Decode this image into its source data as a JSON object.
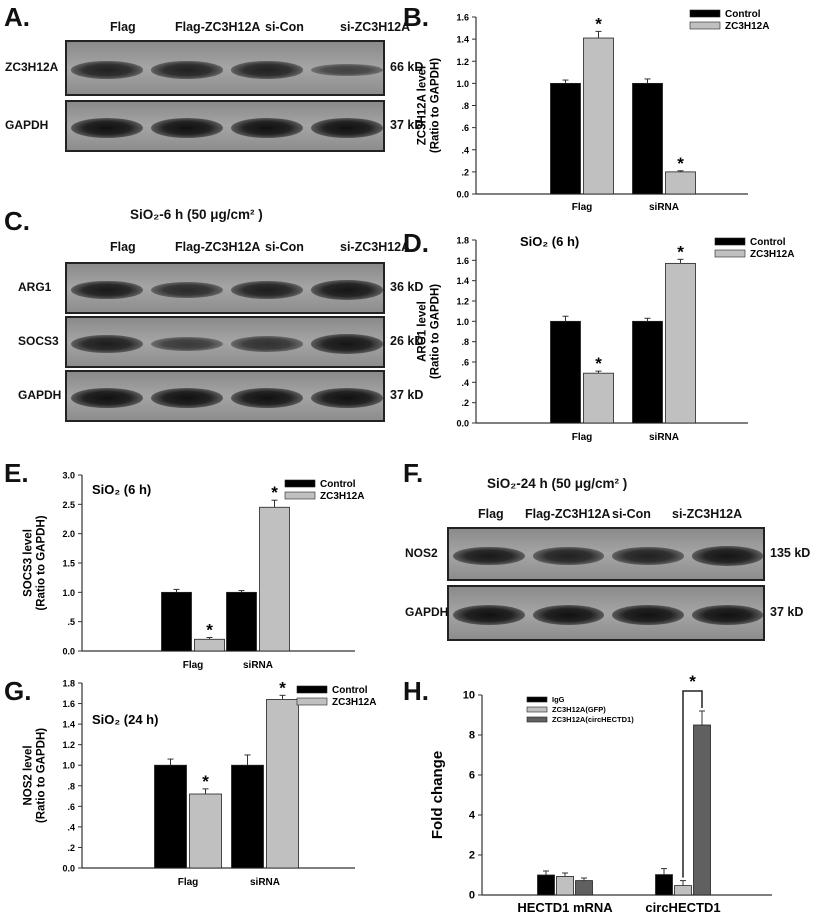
{
  "panel_labels": {
    "A": "A.",
    "B": "B.",
    "C": "C.",
    "D": "D.",
    "E": "E.",
    "F": "F.",
    "G": "G.",
    "H": "H."
  },
  "blots": {
    "A": {
      "lanes": [
        "Flag",
        "Flag-ZC3H12A",
        "si-Con",
        "si-ZC3H12A"
      ],
      "rows": [
        {
          "name": "ZC3H12A",
          "size": "66 kD",
          "intensity": [
            0.8,
            0.8,
            0.8,
            0.4
          ]
        },
        {
          "name": "GAPDH",
          "size": "37 kD",
          "intensity": [
            1,
            1,
            1,
            1
          ]
        }
      ]
    },
    "C": {
      "title": "SiO₂-6 h (50 μg/cm² )",
      "lanes": [
        "Flag",
        "Flag-ZC3H12A",
        "si-Con",
        "si-ZC3H12A"
      ],
      "rows": [
        {
          "name": "ARG1",
          "size": "36 kD",
          "intensity": [
            0.9,
            0.7,
            0.85,
            0.95
          ]
        },
        {
          "name": "SOCS3",
          "size": "26 kD",
          "intensity": [
            0.85,
            0.5,
            0.6,
            0.95
          ]
        },
        {
          "name": "GAPDH",
          "size": "37 kD",
          "intensity": [
            1,
            1,
            1,
            1
          ]
        }
      ]
    },
    "F": {
      "title": "SiO₂-24 h (50 μg/cm² )",
      "lanes": [
        "Flag",
        "Flag-ZC3H12A",
        "si-Con",
        "si-ZC3H12A"
      ],
      "rows": [
        {
          "name": "NOS2",
          "size": "135 kD",
          "intensity": [
            0.9,
            0.8,
            0.8,
            0.95
          ]
        },
        {
          "name": "GAPDH",
          "size": "37 kD",
          "intensity": [
            1,
            1,
            1,
            1
          ]
        }
      ]
    }
  },
  "chart_data": [
    {
      "id": "B",
      "type": "bar",
      "title": "",
      "ylabel": [
        "ZC3H12A level",
        "(Ratio to GAPDH)"
      ],
      "xlabel": "",
      "categories": [
        "Flag",
        "siRNA"
      ],
      "ylim": [
        0,
        1.6
      ],
      "yticks": [
        "0.0",
        ".2",
        ".4",
        ".6",
        ".8",
        "1.0",
        "1.2",
        "1.4",
        "1.6"
      ],
      "series": [
        {
          "name": "Control",
          "color": "#000000",
          "values": [
            1.0,
            1.0
          ],
          "errors": [
            0.03,
            0.04
          ],
          "sig": [
            false,
            false
          ]
        },
        {
          "name": "ZC3H12A",
          "color": "#c0c0c0",
          "values": [
            1.41,
            0.2
          ],
          "errors": [
            0.06,
            0.01
          ],
          "sig": [
            true,
            true
          ]
        }
      ],
      "legend": "top-right",
      "sig_mark": "*"
    },
    {
      "id": "D",
      "type": "bar",
      "title": "SiO₂ (6 h)",
      "ylabel": [
        "ARG1 level",
        "(Ratio to GAPDH)"
      ],
      "xlabel": "",
      "categories": [
        "Flag",
        "siRNA"
      ],
      "ylim": [
        0,
        1.8
      ],
      "yticks": [
        "0.0",
        ".2",
        ".4",
        ".6",
        ".8",
        "1.0",
        "1.2",
        "1.4",
        "1.6",
        "1.8"
      ],
      "series": [
        {
          "name": "Control",
          "color": "#000000",
          "values": [
            1.0,
            1.0
          ],
          "errors": [
            0.05,
            0.03
          ],
          "sig": [
            false,
            false
          ]
        },
        {
          "name": "ZC3H12A",
          "color": "#c0c0c0",
          "values": [
            0.49,
            1.57
          ],
          "errors": [
            0.02,
            0.04
          ],
          "sig": [
            true,
            true
          ]
        }
      ],
      "legend": "top-right",
      "sig_mark": "*"
    },
    {
      "id": "E",
      "type": "bar",
      "title": "SiO₂ (6 h)",
      "ylabel": [
        "SOCS3 level",
        "(Ratio to GAPDH)"
      ],
      "xlabel": "",
      "categories": [
        "Flag",
        "siRNA"
      ],
      "ylim": [
        0,
        3.0
      ],
      "yticks": [
        "0.0",
        ".5",
        "1.0",
        "1.5",
        "2.0",
        "2.5",
        "3.0"
      ],
      "series": [
        {
          "name": "Control",
          "color": "#000000",
          "values": [
            1.0,
            1.0
          ],
          "errors": [
            0.05,
            0.03
          ],
          "sig": [
            false,
            false
          ]
        },
        {
          "name": "ZC3H12A",
          "color": "#c0c0c0",
          "values": [
            0.2,
            2.45
          ],
          "errors": [
            0.03,
            0.12
          ],
          "sig": [
            true,
            true
          ]
        }
      ],
      "legend": "top-right",
      "sig_mark": "*"
    },
    {
      "id": "G",
      "type": "bar",
      "title": "SiO₂ (24 h)",
      "ylabel": [
        "NOS2 level",
        "(Ratio to GAPDH)"
      ],
      "xlabel": "",
      "categories": [
        "Flag",
        "siRNA"
      ],
      "ylim": [
        0,
        1.8
      ],
      "yticks": [
        "0.0",
        ".2",
        ".4",
        ".6",
        ".8",
        "1.0",
        "1.2",
        "1.4",
        "1.6",
        "1.8"
      ],
      "series": [
        {
          "name": "Control",
          "color": "#000000",
          "values": [
            1.0,
            1.0
          ],
          "errors": [
            0.06,
            0.1
          ],
          "sig": [
            false,
            false
          ]
        },
        {
          "name": "ZC3H12A",
          "color": "#c0c0c0",
          "values": [
            0.72,
            1.64
          ],
          "errors": [
            0.05,
            0.04
          ],
          "sig": [
            true,
            true
          ]
        }
      ],
      "legend": "top-right",
      "sig_mark": "*"
    },
    {
      "id": "H",
      "type": "bar",
      "title": "",
      "ylabel": [
        "Fold change"
      ],
      "xlabel": "",
      "categories": [
        "HECTD1 mRNA",
        "circHECTD1"
      ],
      "ylim": [
        0,
        10
      ],
      "yticks": [
        "0",
        "2",
        "4",
        "6",
        "8",
        "10"
      ],
      "series": [
        {
          "name": "IgG",
          "color": "#000000",
          "values": [
            1.0,
            1.02
          ],
          "errors": [
            0.2,
            0.3
          ],
          "sig": [
            false,
            false
          ]
        },
        {
          "name": "ZC3H12A(GFP)",
          "color": "#c0c0c0",
          "values": [
            0.93,
            0.47
          ],
          "errors": [
            0.17,
            0.25
          ],
          "sig": [
            false,
            false
          ]
        },
        {
          "name": "ZC3H12A(circHECTD1)",
          "color": "#606060",
          "values": [
            0.72,
            8.5
          ],
          "errors": [
            0.13,
            0.7
          ],
          "sig": [
            false,
            false
          ]
        }
      ],
      "bracket": {
        "category": "circHECTD1",
        "from": "ZC3H12A(GFP)",
        "to": "ZC3H12A(circHECTD1)",
        "mark": "*"
      },
      "legend": "top-left"
    }
  ]
}
